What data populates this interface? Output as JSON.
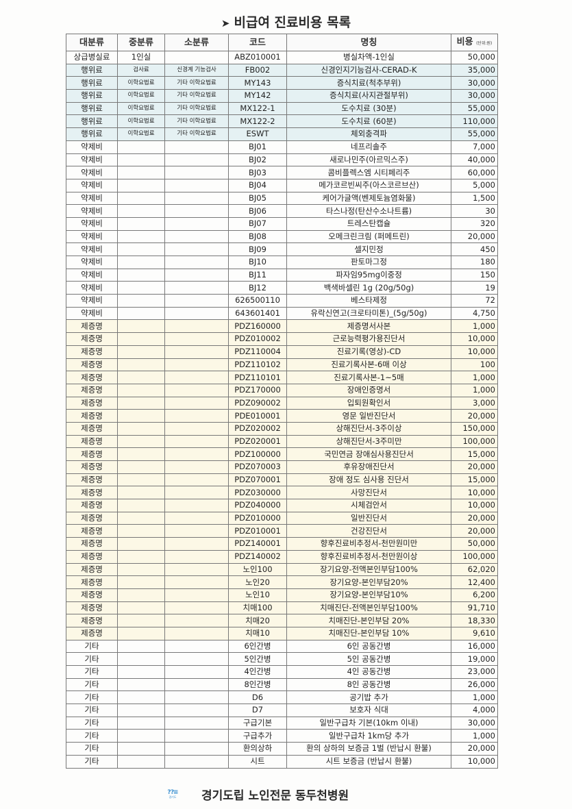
{
  "title": "비급여 진료비용 목록",
  "title_icon": "arrowhead-bullet",
  "headers": {
    "major": "대분류",
    "middle": "중분류",
    "minor": "소분류",
    "code": "코드",
    "name": "명칭",
    "cost": "비용",
    "cost_unit": "(단위:원)"
  },
  "row_colors": {
    "행위료": "#e5f1f3",
    "제증명": "#fcf8e6",
    "default": "#fdfdfc"
  },
  "rows": [
    [
      "상급병실료",
      "1인실",
      "",
      "ABZ010001",
      "병실차액-1인실",
      "50,000"
    ],
    [
      "행위료",
      "검사료",
      "신경계 기능검사",
      "FB002",
      "신경인지기능검사-CERAD-K",
      "35,000"
    ],
    [
      "행위료",
      "이학요법료",
      "기타 이학요법료",
      "MY143",
      "증식치료(척추부위)",
      "30,000"
    ],
    [
      "행위료",
      "이학요법료",
      "기타 이학요법료",
      "MY142",
      "증식치료(사지관절부위)",
      "30,000"
    ],
    [
      "행위료",
      "이학요법료",
      "기타 이학요법료",
      "MX122-1",
      "도수치료 (30분)",
      "55,000"
    ],
    [
      "행위료",
      "이학요법료",
      "기타 이학요법료",
      "MX122-2",
      "도수치료 (60분)",
      "110,000"
    ],
    [
      "행위료",
      "이학요법료",
      "기타 이학요법료",
      "ESWT",
      "체외충격파",
      "55,000"
    ],
    [
      "약제비",
      "",
      "",
      "BJ01",
      "네프리솔주",
      "7,000"
    ],
    [
      "약제비",
      "",
      "",
      "BJ02",
      "새로나민주(아르믹스주)",
      "40,000"
    ],
    [
      "약제비",
      "",
      "",
      "BJ03",
      "콤비플렉스엠 시티페리주",
      "60,000"
    ],
    [
      "약제비",
      "",
      "",
      "BJ04",
      "메가코르빈씨주(아스코르브산)",
      "5,000"
    ],
    [
      "약제비",
      "",
      "",
      "BJ05",
      "케어가글액(벤제토늄염화물)",
      "1,500"
    ],
    [
      "약제비",
      "",
      "",
      "BJ06",
      "타스나정(탄산수소나트륨)",
      "30"
    ],
    [
      "약제비",
      "",
      "",
      "BJ07",
      "트레스탄캡슐",
      "320"
    ],
    [
      "약제비",
      "",
      "",
      "BJ08",
      "오메크린크림 (퍼메트린)",
      "20,000"
    ],
    [
      "약제비",
      "",
      "",
      "BJ09",
      "셀지민정",
      "450"
    ],
    [
      "약제비",
      "",
      "",
      "BJ10",
      "판토마그정",
      "180"
    ],
    [
      "약제비",
      "",
      "",
      "BJ11",
      "파자임95mg이중정",
      "150"
    ],
    [
      "약제비",
      "",
      "",
      "BJ12",
      "백색바셀린 1g (20g/50g)",
      "19"
    ],
    [
      "약제비",
      "",
      "",
      "626500110",
      "베스타제정",
      "72"
    ],
    [
      "약제비",
      "",
      "",
      "643601401",
      "유락신연고(크로타미톤)_(5g/50g)",
      "4,750"
    ],
    [
      "제증명",
      "",
      "",
      "PDZ160000",
      "제증명서사본",
      "1,000"
    ],
    [
      "제증명",
      "",
      "",
      "PDZ010002",
      "근로능력평가용진단서",
      "10,000"
    ],
    [
      "제증명",
      "",
      "",
      "PDZ110004",
      "진료기록(영상)-CD",
      "10,000"
    ],
    [
      "제증명",
      "",
      "",
      "PDZ110102",
      "진료기록사본-6매 이상",
      "100"
    ],
    [
      "제증명",
      "",
      "",
      "PDZ110101",
      "진료기록사본-1~5매",
      "1,000"
    ],
    [
      "제증명",
      "",
      "",
      "PDZ170000",
      "장애인증명서",
      "1,000"
    ],
    [
      "제증명",
      "",
      "",
      "PDZ090002",
      "입퇴원확인서",
      "3,000"
    ],
    [
      "제증명",
      "",
      "",
      "PDE010001",
      "영문 일반진단서",
      "20,000"
    ],
    [
      "제증명",
      "",
      "",
      "PDZ020002",
      "상해진단서-3주이상",
      "150,000"
    ],
    [
      "제증명",
      "",
      "",
      "PDZ020001",
      "상해진단서-3주미만",
      "100,000"
    ],
    [
      "제증명",
      "",
      "",
      "PDZ100000",
      "국민연금 장애심사용진단서",
      "15,000"
    ],
    [
      "제증명",
      "",
      "",
      "PDZ070003",
      "후유장애진단서",
      "20,000"
    ],
    [
      "제증명",
      "",
      "",
      "PDZ070001",
      "장애 정도 심사용 진단서",
      "15,000"
    ],
    [
      "제증명",
      "",
      "",
      "PDZ030000",
      "사망진단서",
      "10,000"
    ],
    [
      "제증명",
      "",
      "",
      "PDZ040000",
      "시체검안서",
      "10,000"
    ],
    [
      "제증명",
      "",
      "",
      "PDZ010000",
      "일반진단서",
      "20,000"
    ],
    [
      "제증명",
      "",
      "",
      "PDZ010001",
      "건강진단서",
      "20,000"
    ],
    [
      "제증명",
      "",
      "",
      "PDZ140001",
      "향후진료비추정서-천만원미만",
      "50,000"
    ],
    [
      "제증명",
      "",
      "",
      "PDZ140002",
      "향후진료비추정서-천만원이상",
      "100,000"
    ],
    [
      "제증명",
      "",
      "",
      "노인100",
      "장기요양-전액본인부담100%",
      "62,020"
    ],
    [
      "제증명",
      "",
      "",
      "노인20",
      "장기요양-본인부담20%",
      "12,400"
    ],
    [
      "제증명",
      "",
      "",
      "노인10",
      "장기요양-본인부담10%",
      "6,200"
    ],
    [
      "제증명",
      "",
      "",
      "치매100",
      "치매진단-전액본인부담100%",
      "91,710"
    ],
    [
      "제증명",
      "",
      "",
      "치매20",
      "치매진단-본인부담 20%",
      "18,330"
    ],
    [
      "제증명",
      "",
      "",
      "치매10",
      "치매진단-본인부담 10%",
      "9,610"
    ],
    [
      "기타",
      "",
      "",
      "6인간병",
      "6인 공동간병",
      "16,000"
    ],
    [
      "기타",
      "",
      "",
      "5인간병",
      "5인 공동간병",
      "19,000"
    ],
    [
      "기타",
      "",
      "",
      "4인간병",
      "4인 공동간병",
      "23,000"
    ],
    [
      "기타",
      "",
      "",
      "8인간병",
      "8인 공동간병",
      "26,000"
    ],
    [
      "기타",
      "",
      "",
      "D6",
      "공기밥 추가",
      "1,000"
    ],
    [
      "기타",
      "",
      "",
      "D7",
      "보호자 식대",
      "4,000"
    ],
    [
      "기타",
      "",
      "",
      "구급기본",
      "일반구급차 기본(10km 이내)",
      "30,000"
    ],
    [
      "기타",
      "",
      "",
      "구급추가",
      "일반구급차 1km당 추가",
      "1,000"
    ],
    [
      "기타",
      "",
      "",
      "환의상하",
      "환의 상하의 보증금 1벌 (반납시 환불)",
      "20,000"
    ],
    [
      "기타",
      "",
      "",
      "시트",
      "시트 보증금 (반납시 환불)",
      "10,000"
    ]
  ],
  "footer": {
    "logo_text": "경기도",
    "hospital": "경기도립 노인전문 동두천병원"
  }
}
